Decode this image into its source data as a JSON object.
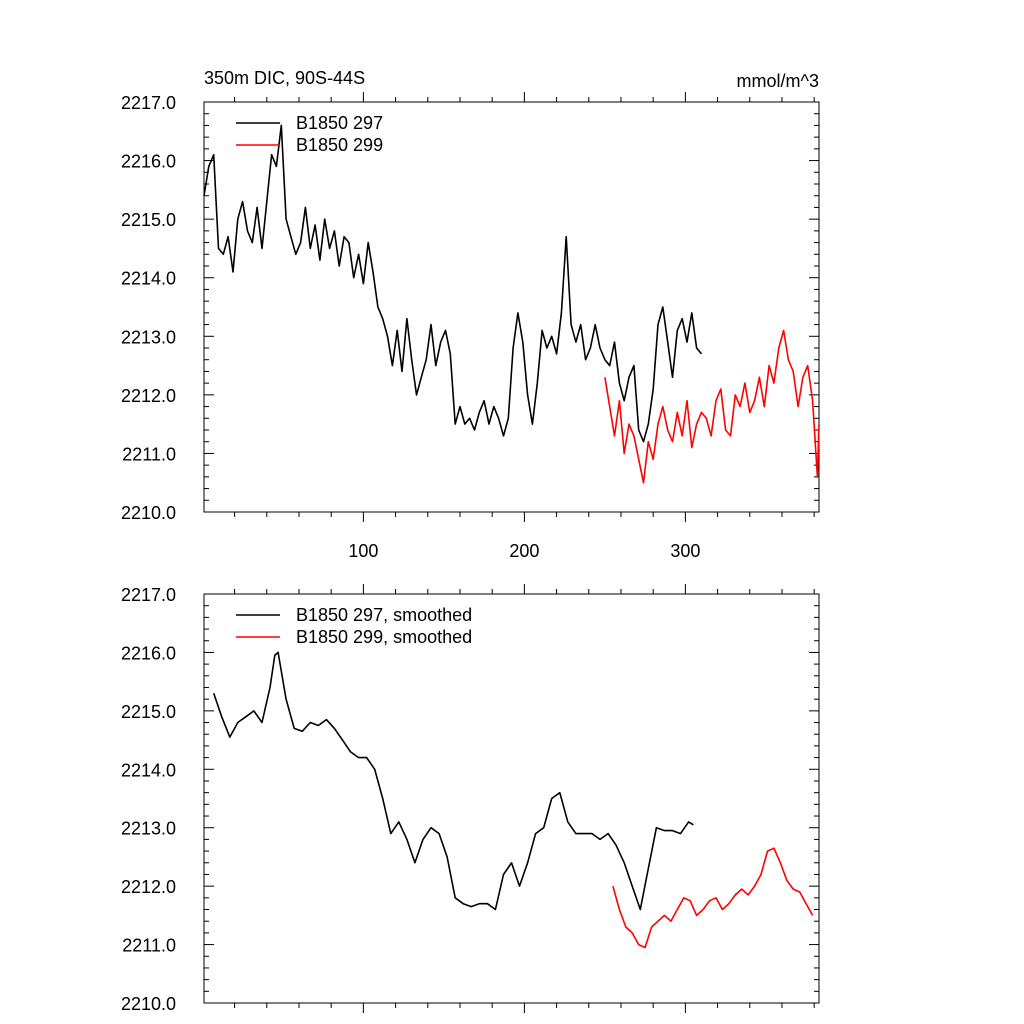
{
  "chart_data": [
    {
      "type": "line",
      "title": "350m DIC, 90S-44S",
      "units": "mmol/m^3",
      "xlim": [
        1,
        383
      ],
      "ylim": [
        2210,
        2217
      ],
      "ytick_labels": [
        "2210.0",
        "2211.0",
        "2212.0",
        "2213.0",
        "2214.0",
        "2215.0",
        "2216.0",
        "2217.0"
      ],
      "xtick_labels": [
        "100",
        "200",
        "300"
      ],
      "series": [
        {
          "name": "B1850 297",
          "color": "#000000",
          "x": [
            1,
            4,
            7,
            10,
            13,
            16,
            19,
            22,
            25,
            28,
            31,
            34,
            37,
            40,
            43,
            46,
            49,
            52,
            55,
            58,
            61,
            64,
            67,
            70,
            73,
            76,
            79,
            82,
            85,
            88,
            91,
            94,
            97,
            100,
            103,
            106,
            109,
            112,
            115,
            118,
            121,
            124,
            127,
            130,
            133,
            136,
            139,
            142,
            145,
            148,
            151,
            154,
            157,
            160,
            163,
            166,
            169,
            172,
            175,
            178,
            181,
            184,
            187,
            190,
            193,
            196,
            199,
            202,
            205,
            208,
            211,
            214,
            217,
            220,
            223,
            226,
            229,
            232,
            235,
            238,
            241,
            244,
            247,
            250,
            253,
            256,
            259,
            262,
            265,
            268,
            271,
            274,
            277,
            280,
            283,
            286,
            289,
            292,
            295,
            298,
            301,
            304,
            307,
            310
          ],
          "values": [
            2215.4,
            2215.9,
            2216.1,
            2214.5,
            2214.4,
            2214.7,
            2214.1,
            2215.0,
            2215.3,
            2214.8,
            2214.6,
            2215.2,
            2214.5,
            2215.3,
            2216.1,
            2215.9,
            2216.6,
            2215.0,
            2214.7,
            2214.4,
            2214.6,
            2215.2,
            2214.5,
            2214.9,
            2214.3,
            2215.0,
            2214.5,
            2214.8,
            2214.2,
            2214.7,
            2214.6,
            2214.0,
            2214.4,
            2213.9,
            2214.6,
            2214.1,
            2213.5,
            2213.3,
            2213.0,
            2212.5,
            2213.1,
            2212.4,
            2213.3,
            2212.6,
            2212.0,
            2212.3,
            2212.6,
            2213.2,
            2212.5,
            2212.9,
            2213.1,
            2212.7,
            2211.5,
            2211.8,
            2211.5,
            2211.6,
            2211.4,
            2211.7,
            2211.9,
            2211.5,
            2211.8,
            2211.6,
            2211.3,
            2211.6,
            2212.8,
            2213.4,
            2212.9,
            2212.0,
            2211.5,
            2212.2,
            2213.1,
            2212.8,
            2213.0,
            2212.7,
            2213.4,
            2214.7,
            2213.2,
            2212.9,
            2213.2,
            2212.6,
            2212.8,
            2213.2,
            2212.8,
            2212.6,
            2212.5,
            2212.9,
            2212.2,
            2211.9,
            2212.3,
            2212.5,
            2211.4,
            2211.2,
            2211.5,
            2212.1,
            2213.2,
            2213.5,
            2212.9,
            2212.3,
            2213.1,
            2213.3,
            2212.9,
            2213.4,
            2212.8,
            2212.7
          ]
        },
        {
          "name": "B1850 299",
          "color": "#ff0000",
          "x": [
            250,
            253,
            256,
            259,
            262,
            265,
            268,
            271,
            274,
            277,
            280,
            283,
            286,
            289,
            292,
            295,
            298,
            301,
            304,
            307,
            310,
            313,
            316,
            319,
            322,
            325,
            328,
            331,
            334,
            337,
            340,
            343,
            346,
            349,
            352,
            355,
            358,
            361,
            364,
            367,
            370,
            373,
            376,
            379,
            382,
            383
          ],
          "values": [
            2212.3,
            2211.8,
            2211.3,
            2211.9,
            2211.0,
            2211.5,
            2211.3,
            2210.9,
            2210.5,
            2211.2,
            2210.9,
            2211.5,
            2211.8,
            2211.4,
            2211.2,
            2211.7,
            2211.3,
            2211.9,
            2211.1,
            2211.5,
            2211.7,
            2211.6,
            2211.3,
            2211.9,
            2212.1,
            2211.4,
            2211.3,
            2212.0,
            2211.8,
            2212.2,
            2211.7,
            2211.9,
            2212.3,
            2211.8,
            2212.5,
            2212.2,
            2212.8,
            2213.1,
            2212.6,
            2212.4,
            2211.8,
            2212.3,
            2212.5,
            2211.9,
            2210.6,
            2211.5
          ]
        }
      ]
    },
    {
      "type": "line",
      "xlim": [
        1,
        383
      ],
      "ylim": [
        2210,
        2217
      ],
      "ytick_labels": [
        "2210.0",
        "2211.0",
        "2212.0",
        "2213.0",
        "2214.0",
        "2215.0",
        "2216.0",
        "2217.0"
      ],
      "series": [
        {
          "name": "B1850 297, smoothed",
          "color": "#000000",
          "x": [
            7,
            12,
            17,
            22,
            27,
            32,
            37,
            42,
            45,
            47,
            52,
            57,
            62,
            67,
            72,
            77,
            82,
            87,
            92,
            97,
            102,
            107,
            112,
            117,
            122,
            127,
            132,
            137,
            142,
            147,
            152,
            157,
            162,
            167,
            172,
            177,
            182,
            187,
            192,
            197,
            202,
            207,
            212,
            217,
            222,
            227,
            232,
            237,
            242,
            247,
            252,
            257,
            262,
            267,
            272,
            277,
            282,
            287,
            292,
            297,
            302,
            305
          ],
          "values": [
            2215.3,
            2214.9,
            2214.55,
            2214.8,
            2214.9,
            2215.0,
            2214.8,
            2215.4,
            2215.95,
            2216.0,
            2215.2,
            2214.7,
            2214.65,
            2214.8,
            2214.75,
            2214.85,
            2214.7,
            2214.5,
            2214.3,
            2214.2,
            2214.2,
            2214.0,
            2213.5,
            2212.9,
            2213.1,
            2212.8,
            2212.4,
            2212.8,
            2213.0,
            2212.9,
            2212.5,
            2211.8,
            2211.7,
            2211.65,
            2211.7,
            2211.7,
            2211.6,
            2212.2,
            2212.4,
            2212.0,
            2212.4,
            2212.9,
            2213.0,
            2213.5,
            2213.6,
            2213.1,
            2212.9,
            2212.9,
            2212.9,
            2212.8,
            2212.9,
            2212.7,
            2212.4,
            2212.0,
            2211.6,
            2212.3,
            2213.0,
            2212.95,
            2212.95,
            2212.9,
            2213.1,
            2213.05
          ]
        },
        {
          "name": "B1850 299, smoothed",
          "color": "#ff0000",
          "x": [
            255,
            259,
            263,
            267,
            271,
            275,
            279,
            283,
            287,
            291,
            295,
            299,
            303,
            307,
            311,
            315,
            319,
            323,
            327,
            331,
            335,
            339,
            343,
            347,
            351,
            355,
            359,
            363,
            367,
            371,
            375,
            379
          ],
          "values": [
            2212.0,
            2211.6,
            2211.3,
            2211.2,
            2211.0,
            2210.95,
            2211.3,
            2211.4,
            2211.5,
            2211.4,
            2211.6,
            2211.8,
            2211.75,
            2211.5,
            2211.6,
            2211.75,
            2211.8,
            2211.6,
            2211.7,
            2211.85,
            2211.95,
            2211.85,
            2212.0,
            2212.2,
            2212.6,
            2212.65,
            2212.4,
            2212.1,
            2211.95,
            2211.9,
            2211.7,
            2211.5
          ]
        }
      ]
    }
  ]
}
